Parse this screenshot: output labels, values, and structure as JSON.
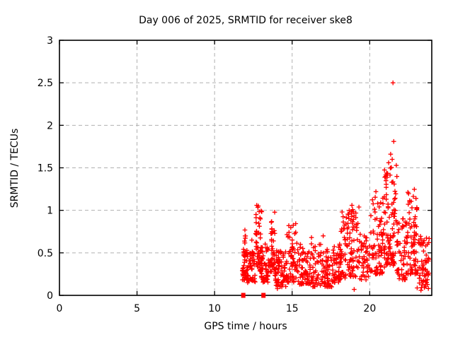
{
  "window": {
    "background": "#ffffff",
    "foreground": "#000000"
  },
  "chart_data": {
    "type": "scatter",
    "title": "Day 006 of 2025, SRMTID for receiver ske8",
    "xlabel": "GPS time / hours",
    "ylabel": "SRMTID / TECUs",
    "xlim": [
      0,
      24
    ],
    "ylim": [
      0,
      3
    ],
    "xticks": [
      0,
      5,
      10,
      15,
      20
    ],
    "yticks": [
      0,
      0.5,
      1,
      1.5,
      2,
      2.5,
      3
    ],
    "grid": {
      "visible": true,
      "color": "#b0b0b0",
      "dash": "5,4"
    },
    "frame_color": "#000000",
    "marker": {
      "shape": "plus",
      "color": "#ff0000",
      "size": 7,
      "stroke_width": 1.35
    },
    "series_name": "SRMTID",
    "data_start_hour": 11.78,
    "data_end_hour": 23.85,
    "density_clusters": [
      {
        "x0": 11.78,
        "x1": 12.12,
        "ymin": 0.18,
        "ymax": 0.55,
        "n": 40,
        "k": 1.4
      },
      {
        "x0": 11.86,
        "x1": 12.02,
        "ymin": 0.45,
        "ymax": 0.78,
        "n": 12,
        "k": 1.0
      },
      {
        "x0": 12.05,
        "x1": 12.65,
        "ymin": 0.15,
        "ymax": 0.52,
        "n": 55,
        "k": 1.3
      },
      {
        "x0": 12.65,
        "x1": 13.05,
        "ymin": 0.28,
        "ymax": 1.07,
        "n": 55,
        "k": 1.5
      },
      {
        "x0": 13.0,
        "x1": 13.55,
        "ymin": 0.15,
        "ymax": 0.62,
        "n": 50,
        "k": 1.4
      },
      {
        "x0": 13.55,
        "x1": 13.88,
        "ymin": 0.28,
        "ymax": 0.98,
        "n": 42,
        "k": 1.4
      },
      {
        "x0": 13.88,
        "x1": 14.65,
        "ymin": 0.1,
        "ymax": 0.55,
        "n": 75,
        "k": 1.3
      },
      {
        "x0": 14.65,
        "x1": 15.3,
        "ymin": 0.15,
        "ymax": 0.85,
        "n": 55,
        "k": 1.8
      },
      {
        "x0": 15.3,
        "x1": 16.3,
        "ymin": 0.13,
        "ymax": 0.62,
        "n": 75,
        "k": 1.5
      },
      {
        "x0": 16.3,
        "x1": 17.6,
        "ymin": 0.1,
        "ymax": 0.6,
        "n": 95,
        "k": 1.6
      },
      {
        "x0": 17.6,
        "x1": 18.15,
        "ymin": 0.15,
        "ymax": 0.62,
        "n": 55,
        "k": 1.4
      },
      {
        "x0": 18.15,
        "x1": 18.7,
        "ymin": 0.2,
        "ymax": 1.0,
        "n": 50,
        "k": 1.5
      },
      {
        "x0": 18.7,
        "x1": 19.35,
        "ymin": 0.22,
        "ymax": 1.08,
        "n": 60,
        "k": 1.5
      },
      {
        "x0": 19.35,
        "x1": 20.05,
        "ymin": 0.18,
        "ymax": 0.72,
        "n": 45,
        "k": 1.4
      },
      {
        "x0": 20.05,
        "x1": 20.95,
        "ymin": 0.25,
        "ymax": 1.18,
        "n": 85,
        "k": 1.6
      },
      {
        "x0": 20.95,
        "x1": 21.75,
        "ymin": 0.35,
        "ymax": 1.55,
        "n": 95,
        "k": 1.7
      },
      {
        "x0": 21.75,
        "x1": 22.45,
        "ymin": 0.18,
        "ymax": 0.92,
        "n": 60,
        "k": 1.5
      },
      {
        "x0": 22.45,
        "x1": 23.05,
        "ymin": 0.25,
        "ymax": 1.42,
        "n": 70,
        "k": 1.7
      },
      {
        "x0": 23.05,
        "x1": 23.85,
        "ymin": 0.08,
        "ymax": 0.72,
        "n": 65,
        "k": 1.4
      }
    ],
    "outlier_points": [
      [
        21.5,
        2.5
      ],
      [
        21.55,
        1.81
      ],
      [
        21.35,
        1.66
      ],
      [
        21.45,
        1.6
      ],
      [
        21.22,
        1.56
      ],
      [
        20.4,
        1.22
      ],
      [
        19.0,
        0.07
      ],
      [
        23.3,
        0.06
      ],
      [
        14.05,
        0.08
      ],
      [
        17.0,
        0.7
      ],
      [
        16.25,
        0.68
      ],
      [
        12.4,
        0.65
      ]
    ],
    "axis_squares": {
      "shape": "filled-square",
      "color": "#ff0000",
      "size": 6,
      "points": [
        [
          11.85,
          0
        ],
        [
          13.15,
          0
        ]
      ]
    },
    "legend": {
      "visible": false
    },
    "seed": 6
  }
}
